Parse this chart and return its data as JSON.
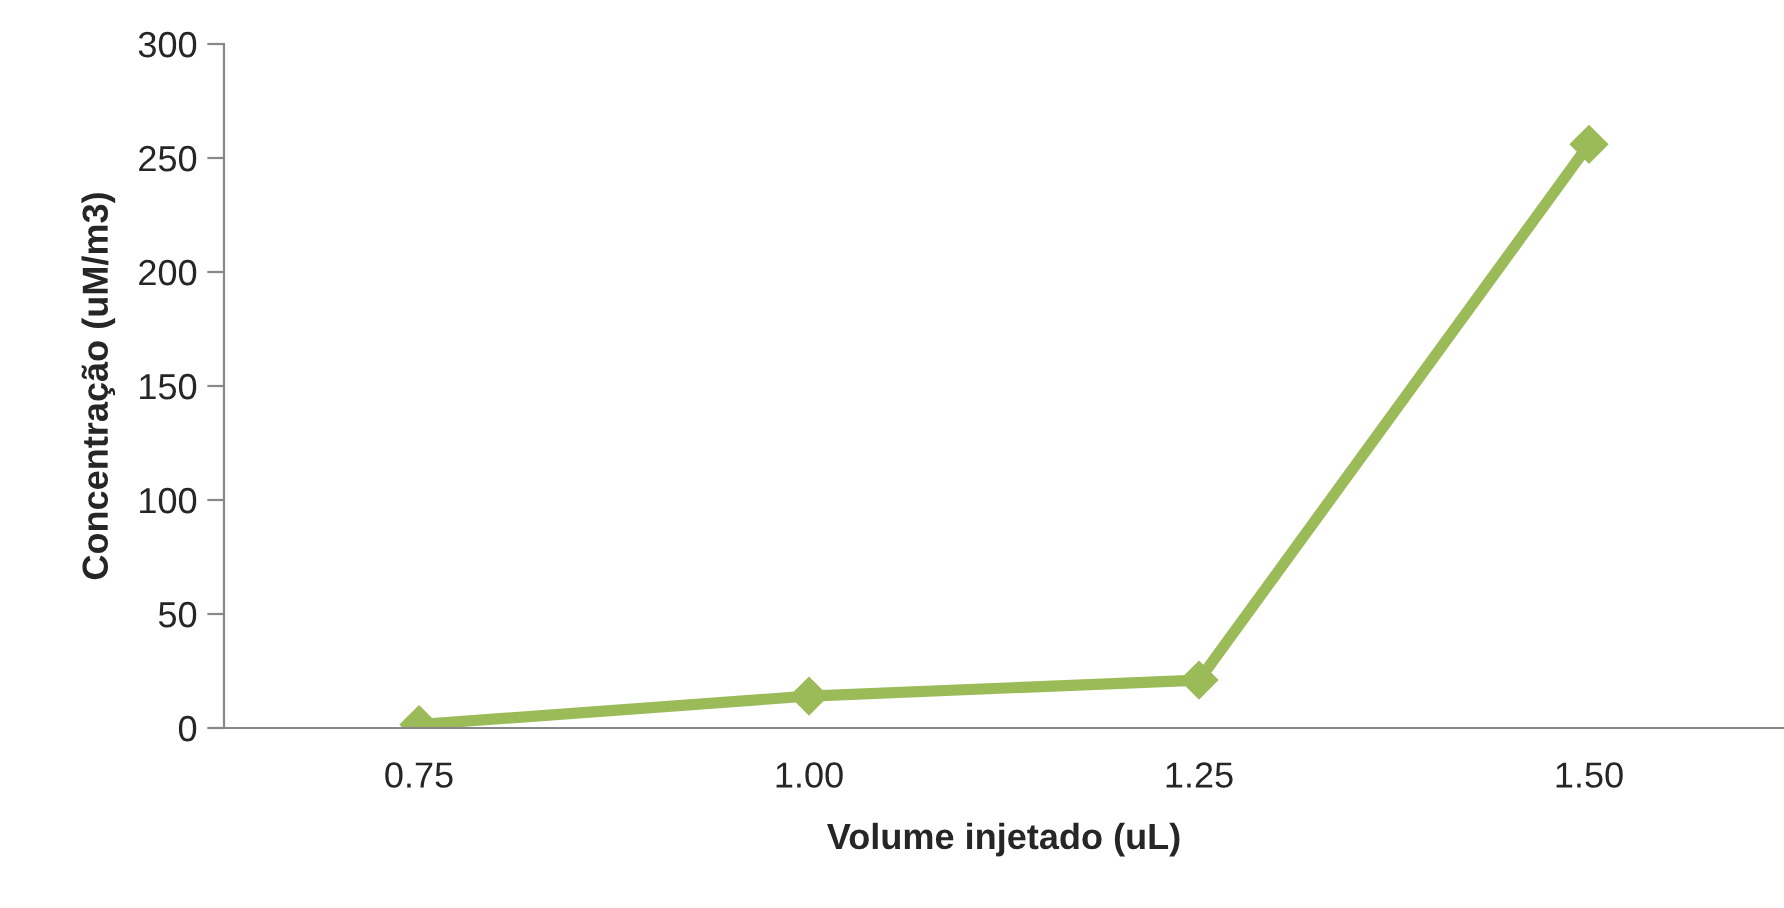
{
  "chart_data": {
    "type": "line",
    "xlabel": "Volume injetado (uL)",
    "ylabel": "Concentração (uM/m3)",
    "categories": [
      "0.75",
      "1.00",
      "1.25",
      "1.50"
    ],
    "series": [
      {
        "color": "#9bbb59",
        "values": [
          1.5,
          14,
          21,
          256
        ]
      }
    ],
    "ylim": [
      0,
      300
    ],
    "yticks": [
      0,
      50,
      100,
      150,
      200,
      250,
      300
    ],
    "grid": false,
    "marker": "diamond",
    "line_style": "solid"
  }
}
